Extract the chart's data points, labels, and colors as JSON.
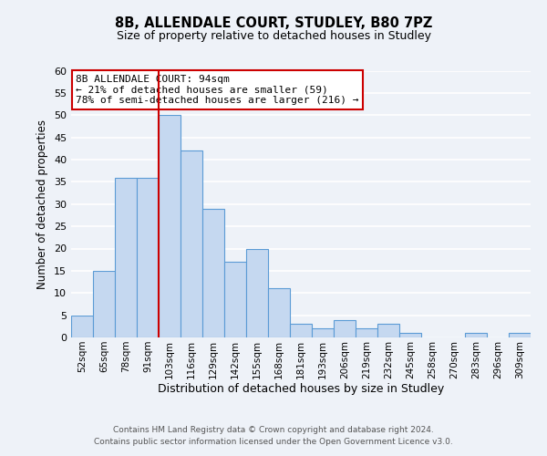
{
  "title": "8B, ALLENDALE COURT, STUDLEY, B80 7PZ",
  "subtitle": "Size of property relative to detached houses in Studley",
  "xlabel": "Distribution of detached houses by size in Studley",
  "ylabel": "Number of detached properties",
  "bar_labels": [
    "52sqm",
    "65sqm",
    "78sqm",
    "91sqm",
    "103sqm",
    "116sqm",
    "129sqm",
    "142sqm",
    "155sqm",
    "168sqm",
    "181sqm",
    "193sqm",
    "206sqm",
    "219sqm",
    "232sqm",
    "245sqm",
    "258sqm",
    "270sqm",
    "283sqm",
    "296sqm",
    "309sqm"
  ],
  "bar_values": [
    5,
    15,
    36,
    36,
    50,
    42,
    29,
    17,
    20,
    11,
    3,
    2,
    4,
    2,
    3,
    1,
    0,
    0,
    1,
    0,
    1
  ],
  "bar_color": "#c5d8f0",
  "bar_edge_color": "#5b9bd5",
  "vline_x": 3.5,
  "vline_color": "#cc0000",
  "annotation_title": "8B ALLENDALE COURT: 94sqm",
  "annotation_line1": "← 21% of detached houses are smaller (59)",
  "annotation_line2": "78% of semi-detached houses are larger (216) →",
  "annotation_box_color": "#ffffff",
  "annotation_box_edge": "#cc0000",
  "ylim": [
    0,
    60
  ],
  "yticks": [
    0,
    5,
    10,
    15,
    20,
    25,
    30,
    35,
    40,
    45,
    50,
    55,
    60
  ],
  "footer1": "Contains HM Land Registry data © Crown copyright and database right 2024.",
  "footer2": "Contains public sector information licensed under the Open Government Licence v3.0.",
  "bg_color": "#eef2f8",
  "grid_color": "#ffffff"
}
